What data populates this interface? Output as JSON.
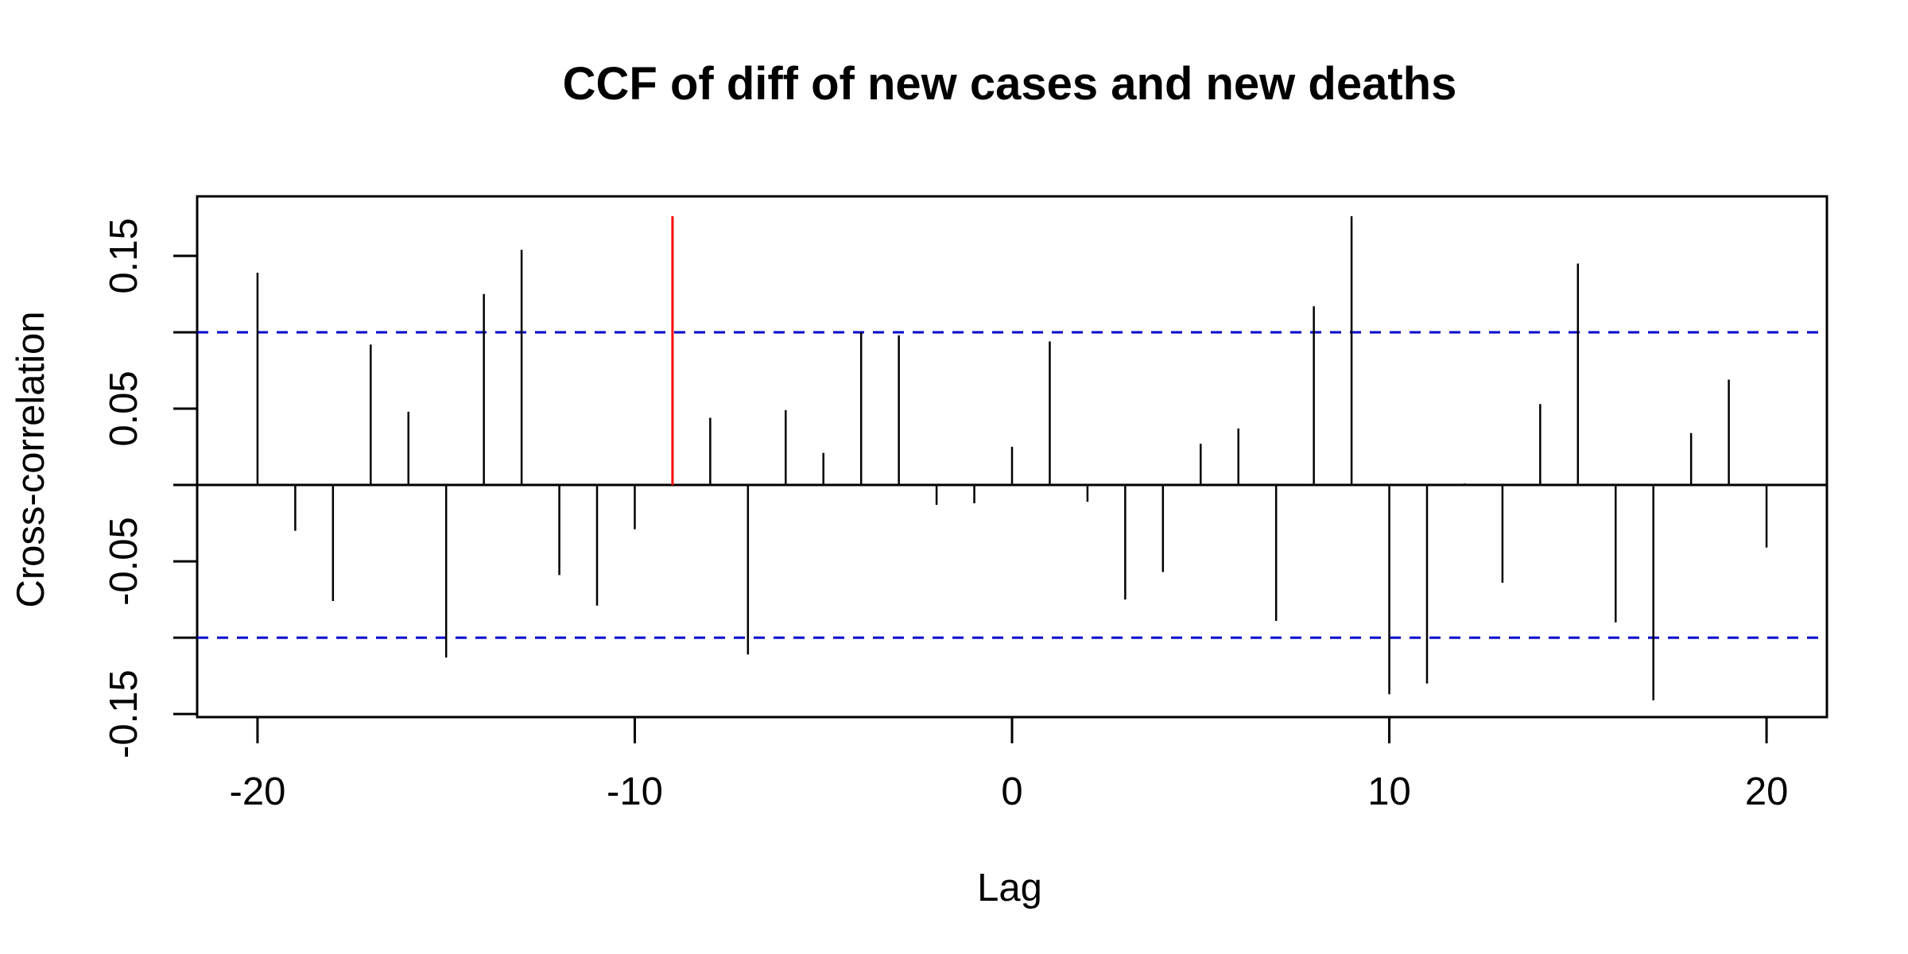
{
  "chart_data": {
    "type": "bar",
    "title": "CCF of diff of new cases and new deaths",
    "xlabel": "Lag",
    "ylabel": "Cross-correlation",
    "xlim": [
      -21.6,
      21.6
    ],
    "ylim": [
      -0.152,
      0.189
    ],
    "x_ticks": [
      -20,
      -10,
      0,
      10,
      20
    ],
    "x_tick_labels": [
      "-20",
      "-10",
      "0",
      "10",
      "20"
    ],
    "y_ticks": [
      -0.15,
      -0.1,
      -0.05,
      0.0,
      0.05,
      0.1,
      0.15
    ],
    "y_tick_labels": [
      "-0.15",
      "",
      "-0.05",
      "",
      "0.05",
      "",
      "0.15"
    ],
    "confidence_bound": 0.1,
    "highlight_lag": -9,
    "highlight_color": "#ff0000",
    "bar_color": "#000000",
    "bound_color": "#0000cd",
    "grid": false,
    "lags": [
      -20,
      -19,
      -18,
      -17,
      -16,
      -15,
      -14,
      -13,
      -12,
      -11,
      -10,
      -9,
      -8,
      -7,
      -6,
      -5,
      -4,
      -3,
      -2,
      -1,
      0,
      1,
      2,
      3,
      4,
      5,
      6,
      7,
      8,
      9,
      10,
      11,
      12,
      13,
      14,
      15,
      16,
      17,
      18,
      19,
      20
    ],
    "values": [
      0.139,
      -0.03,
      -0.076,
      0.092,
      0.048,
      -0.113,
      0.125,
      0.154,
      -0.059,
      -0.079,
      -0.029,
      0.176,
      0.044,
      -0.111,
      0.049,
      0.021,
      0.1,
      0.098,
      -0.013,
      -0.012,
      0.025,
      0.094,
      -0.011,
      -0.075,
      -0.057,
      0.027,
      0.037,
      -0.089,
      0.117,
      0.176,
      -0.137,
      -0.13,
      0.001,
      -0.064,
      0.053,
      0.145,
      -0.09,
      -0.141,
      0.034,
      0.069,
      -0.041
    ]
  }
}
